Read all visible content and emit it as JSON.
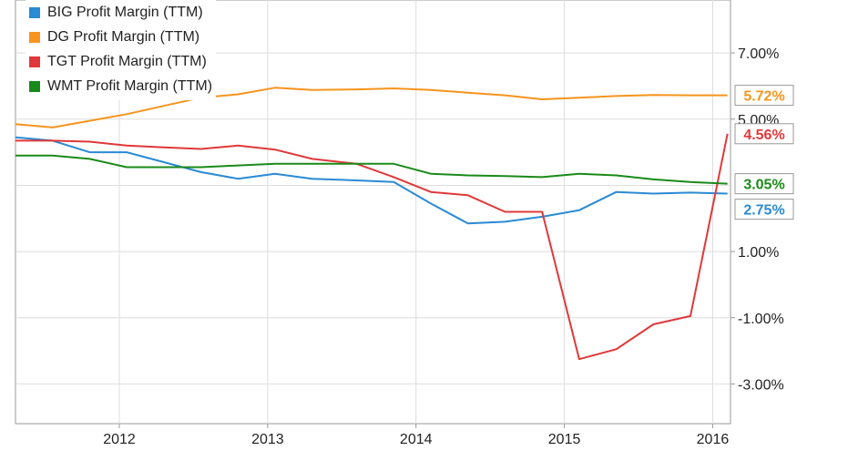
{
  "chart_data": {
    "type": "line",
    "title": "",
    "xlabel": "",
    "ylabel": "",
    "x_ticks": [
      "2012",
      "2013",
      "2014",
      "2015",
      "2016"
    ],
    "y_ticks": [
      "7.00%",
      "5.00%",
      "1.00%",
      "-1.00%",
      "-3.00%"
    ],
    "y_unit": "%",
    "ylim": [
      -4.2,
      8.6
    ],
    "xlim": [
      2011.3,
      2016.12
    ],
    "grid": true,
    "legend_position": "top-left",
    "series": [
      {
        "name": "BIG Profit Margin (TTM)",
        "color": "#2a8ad4",
        "end_label": "2.75%",
        "x": [
          2011.3,
          2011.55,
          2011.8,
          2012.05,
          2012.3,
          2012.55,
          2012.8,
          2013.05,
          2013.3,
          2013.6,
          2013.85,
          2014.1,
          2014.35,
          2014.6,
          2014.85,
          2015.1,
          2015.35,
          2015.6,
          2015.85,
          2016.1
        ],
        "values": [
          4.45,
          4.35,
          4.0,
          4.0,
          3.7,
          3.4,
          3.2,
          3.35,
          3.2,
          3.15,
          3.1,
          2.45,
          1.85,
          1.9,
          2.05,
          2.25,
          2.8,
          2.75,
          2.78,
          2.75
        ]
      },
      {
        "name": "DG Profit Margin (TTM)",
        "color": "#f7941e",
        "end_label": "5.72%",
        "x": [
          2011.3,
          2011.55,
          2011.8,
          2012.05,
          2012.3,
          2012.55,
          2012.8,
          2013.05,
          2013.3,
          2013.6,
          2013.85,
          2014.1,
          2014.35,
          2014.6,
          2014.85,
          2015.1,
          2015.35,
          2015.6,
          2015.85,
          2016.1
        ],
        "values": [
          4.85,
          4.75,
          4.95,
          5.15,
          5.4,
          5.65,
          5.75,
          5.95,
          5.88,
          5.9,
          5.93,
          5.88,
          5.8,
          5.72,
          5.6,
          5.65,
          5.7,
          5.73,
          5.72,
          5.72
        ]
      },
      {
        "name": "TGT Profit Margin (TTM)",
        "color": "#e0383a",
        "end_label": "4.56%",
        "x": [
          2011.3,
          2011.55,
          2011.8,
          2012.05,
          2012.3,
          2012.55,
          2012.8,
          2013.05,
          2013.3,
          2013.6,
          2013.85,
          2014.1,
          2014.35,
          2014.6,
          2014.85,
          2015.1,
          2015.35,
          2015.6,
          2015.85,
          2016.1
        ],
        "values": [
          4.35,
          4.35,
          4.32,
          4.2,
          4.15,
          4.1,
          4.2,
          4.08,
          3.8,
          3.65,
          3.25,
          2.8,
          2.7,
          2.2,
          2.2,
          -2.25,
          -1.95,
          -1.2,
          -0.95,
          4.56
        ]
      },
      {
        "name": "WMT Profit Margin (TTM)",
        "color": "#1a8a1a",
        "end_label": "3.05%",
        "x": [
          2011.3,
          2011.55,
          2011.8,
          2012.05,
          2012.3,
          2012.55,
          2012.8,
          2013.05,
          2013.3,
          2013.6,
          2013.85,
          2014.1,
          2014.35,
          2014.6,
          2014.85,
          2015.1,
          2015.35,
          2015.6,
          2015.85,
          2016.1
        ],
        "values": [
          3.9,
          3.9,
          3.8,
          3.55,
          3.55,
          3.55,
          3.6,
          3.65,
          3.65,
          3.65,
          3.65,
          3.35,
          3.3,
          3.28,
          3.25,
          3.35,
          3.3,
          3.18,
          3.1,
          3.05
        ]
      }
    ]
  }
}
